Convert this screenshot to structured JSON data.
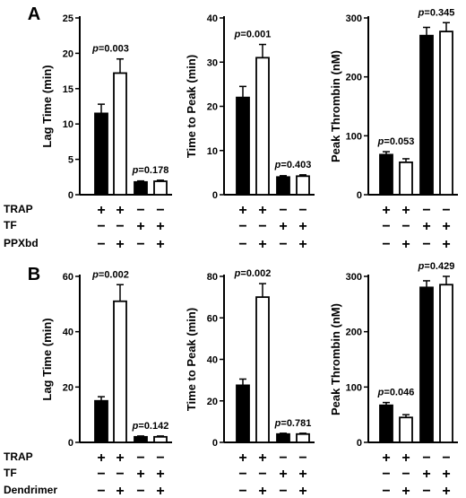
{
  "panels": [
    {
      "letter": "A",
      "condition_rows": [
        "TRAP",
        "TF",
        "PPXbd"
      ],
      "signs": [
        [
          "+",
          "+",
          "−",
          "−"
        ],
        [
          "−",
          "−",
          "+",
          "+"
        ],
        [
          "−",
          "+",
          "−",
          "+"
        ]
      ],
      "charts": [
        {
          "type": "bar",
          "ylabel": "Lag Time (min)",
          "ylim": [
            0,
            25
          ],
          "yticks": [
            0,
            5,
            10,
            15,
            20,
            25
          ],
          "values": [
            11.5,
            17.2,
            1.8,
            1.9
          ],
          "errors": [
            1.3,
            2.0,
            0.15,
            0.15
          ],
          "fills": [
            "black",
            "white",
            "black",
            "white"
          ],
          "pvalues": [
            {
              "text": "p=0.003",
              "pair": 0
            },
            {
              "text": "p=0.178",
              "pair": 1
            }
          ]
        },
        {
          "type": "bar",
          "ylabel": "Time to Peak (min)",
          "ylim": [
            0,
            40
          ],
          "yticks": [
            0,
            10,
            20,
            30,
            40
          ],
          "values": [
            22,
            31,
            4,
            4.2
          ],
          "errors": [
            2.5,
            3.0,
            0.3,
            0.3
          ],
          "fills": [
            "black",
            "white",
            "black",
            "white"
          ],
          "pvalues": [
            {
              "text": "p=0.001",
              "pair": 0
            },
            {
              "text": "p=0.403",
              "pair": 1
            }
          ]
        },
        {
          "type": "bar",
          "ylabel": "Peak Thrombin (nM)",
          "ylim": [
            0,
            300
          ],
          "yticks": [
            0,
            100,
            200,
            300
          ],
          "values": [
            68,
            55,
            270,
            277
          ],
          "errors": [
            5,
            6,
            14,
            15
          ],
          "fills": [
            "black",
            "white",
            "black",
            "white"
          ],
          "pvalues": [
            {
              "text": "p=0.053",
              "pair": 0
            },
            {
              "text": "p=0.345",
              "pair": 1
            }
          ]
        }
      ]
    },
    {
      "letter": "B",
      "condition_rows": [
        "TRAP",
        "TF",
        "Dendrimer"
      ],
      "signs": [
        [
          "+",
          "+",
          "−",
          "−"
        ],
        [
          "−",
          "−",
          "+",
          "+"
        ],
        [
          "−",
          "+",
          "−",
          "+"
        ]
      ],
      "charts": [
        {
          "type": "bar",
          "ylabel": "Lag Time (min)",
          "ylim": [
            0,
            60
          ],
          "yticks": [
            0,
            20,
            40,
            60
          ],
          "values": [
            15,
            51,
            2,
            2
          ],
          "errors": [
            1.5,
            6,
            0.3,
            0.3
          ],
          "fills": [
            "black",
            "white",
            "black",
            "white"
          ],
          "pvalues": [
            {
              "text": "p=0.002",
              "pair": 0
            },
            {
              "text": "p=0.142",
              "pair": 1
            }
          ]
        },
        {
          "type": "bar",
          "ylabel": "Time to Peak (min)",
          "ylim": [
            0,
            80
          ],
          "yticks": [
            0,
            20,
            40,
            60,
            80
          ],
          "values": [
            27.5,
            70,
            4,
            4
          ],
          "errors": [
            3,
            6.5,
            0.4,
            0.4
          ],
          "fills": [
            "black",
            "white",
            "black",
            "white"
          ],
          "pvalues": [
            {
              "text": "p=0.002",
              "pair": 0
            },
            {
              "text": "p=0.781",
              "pair": 1
            }
          ]
        },
        {
          "type": "bar",
          "ylabel": "Peak Thrombin (nM)",
          "ylim": [
            0,
            300
          ],
          "yticks": [
            0,
            100,
            200,
            300
          ],
          "values": [
            67,
            45,
            280,
            285
          ],
          "errors": [
            5,
            5,
            12,
            15
          ],
          "fills": [
            "black",
            "white",
            "black",
            "white"
          ],
          "pvalues": [
            {
              "text": "p=0.046",
              "pair": 0
            },
            {
              "text": "p=0.429",
              "pair": 1
            }
          ]
        }
      ]
    }
  ],
  "chart_data": [
    {
      "type": "bar",
      "panel": "A",
      "ylabel": "Lag Time (min)",
      "ylim": [
        0,
        25
      ],
      "categories": [
        "TRAP",
        "TRAP+PPXbd",
        "TF",
        "TF+PPXbd"
      ],
      "values": [
        11.5,
        17.2,
        1.8,
        1.9
      ],
      "annotations": [
        "p=0.003",
        "p=0.178"
      ]
    },
    {
      "type": "bar",
      "panel": "A",
      "ylabel": "Time to Peak (min)",
      "ylim": [
        0,
        40
      ],
      "categories": [
        "TRAP",
        "TRAP+PPXbd",
        "TF",
        "TF+PPXbd"
      ],
      "values": [
        22,
        31,
        4,
        4.2
      ],
      "annotations": [
        "p=0.001",
        "p=0.403"
      ]
    },
    {
      "type": "bar",
      "panel": "A",
      "ylabel": "Peak Thrombin (nM)",
      "ylim": [
        0,
        300
      ],
      "categories": [
        "TRAP",
        "TRAP+PPXbd",
        "TF",
        "TF+PPXbd"
      ],
      "values": [
        68,
        55,
        270,
        277
      ],
      "annotations": [
        "p=0.053",
        "p=0.345"
      ]
    },
    {
      "type": "bar",
      "panel": "B",
      "ylabel": "Lag Time (min)",
      "ylim": [
        0,
        60
      ],
      "categories": [
        "TRAP",
        "TRAP+Dendrimer",
        "TF",
        "TF+Dendrimer"
      ],
      "values": [
        15,
        51,
        2,
        2
      ],
      "annotations": [
        "p=0.002",
        "p=0.142"
      ]
    },
    {
      "type": "bar",
      "panel": "B",
      "ylabel": "Time to Peak (min)",
      "ylim": [
        0,
        80
      ],
      "categories": [
        "TRAP",
        "TRAP+Dendrimer",
        "TF",
        "TF+Dendrimer"
      ],
      "values": [
        27.5,
        70,
        4,
        4
      ],
      "annotations": [
        "p=0.002",
        "p=0.781"
      ]
    },
    {
      "type": "bar",
      "panel": "B",
      "ylabel": "Peak Thrombin (nM)",
      "ylim": [
        0,
        300
      ],
      "categories": [
        "TRAP",
        "TRAP+Dendrimer",
        "TF",
        "TF+Dendrimer"
      ],
      "values": [
        67,
        45,
        280,
        285
      ],
      "annotations": [
        "p=0.046",
        "p=0.429"
      ]
    }
  ]
}
